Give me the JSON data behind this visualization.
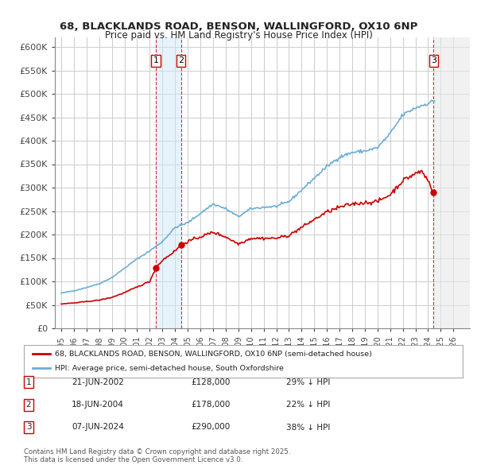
{
  "title_line1": "68, BLACKLANDS ROAD, BENSON, WALLINGFORD, OX10 6NP",
  "title_line2": "Price paid vs. HM Land Registry's House Price Index (HPI)",
  "ylabel": "",
  "xlabel": "",
  "ylim": [
    0,
    620000
  ],
  "yticks": [
    0,
    50000,
    100000,
    150000,
    200000,
    250000,
    300000,
    350000,
    400000,
    450000,
    500000,
    550000,
    600000
  ],
  "ytick_labels": [
    "£0",
    "£50K",
    "£100K",
    "£150K",
    "£200K",
    "£250K",
    "£300K",
    "£350K",
    "£400K",
    "£450K",
    "£500K",
    "£550K",
    "£600K"
  ],
  "x_start_year": 1995,
  "x_end_year": 2027,
  "hpi_color": "#6baed6",
  "price_color": "#cc0000",
  "sale_marker_color": "#cc0000",
  "vline_color": "#cc0000",
  "transaction_shade_color": "#d0e8f8",
  "future_shade_color": "#e8e8e8",
  "sales": [
    {
      "date_decimal": 2002.47,
      "price": 128000,
      "label": "1"
    },
    {
      "date_decimal": 2004.46,
      "price": 178000,
      "label": "2"
    },
    {
      "date_decimal": 2024.44,
      "price": 290000,
      "label": "3"
    }
  ],
  "sale_table": [
    {
      "label": "1",
      "date": "21-JUN-2002",
      "price": "£128,000",
      "hpi_diff": "29% ↓ HPI"
    },
    {
      "label": "2",
      "date": "18-JUN-2004",
      "price": "£178,000",
      "hpi_diff": "22% ↓ HPI"
    },
    {
      "label": "3",
      "date": "07-JUN-2024",
      "price": "£290,000",
      "hpi_diff": "38% ↓ HPI"
    }
  ],
  "legend_line1": "68, BLACKLANDS ROAD, BENSON, WALLINGFORD, OX10 6NP (semi-detached house)",
  "legend_line2": "HPI: Average price, semi-detached house, South Oxfordshire",
  "footer": "Contains HM Land Registry data © Crown copyright and database right 2025.\nThis data is licensed under the Open Government Licence v3.0.",
  "background_color": "#ffffff",
  "grid_color": "#cccccc"
}
